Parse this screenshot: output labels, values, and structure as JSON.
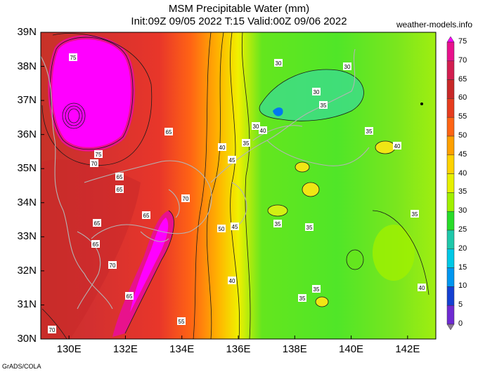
{
  "header": {
    "title": "MSM Precipitable Water (mm)",
    "subtitle": "Init:09Z 09/05 2022  T:15 Valid:00Z 09/06 2022",
    "site": "weather-models.info"
  },
  "footer": {
    "credit": "GrADS/COLA"
  },
  "map": {
    "lat_labels": [
      "39N",
      "38N",
      "37N",
      "36N",
      "35N",
      "34N",
      "33N",
      "32N",
      "31N",
      "30N"
    ],
    "lon_labels": [
      "130E",
      "132E",
      "134E",
      "136E",
      "138E",
      "140E",
      "142E"
    ],
    "lat_range": [
      30,
      39
    ],
    "lon_range": [
      129,
      143
    ],
    "contour_labels": [
      "75",
      "75",
      "70",
      "65",
      "65",
      "65",
      "70",
      "65",
      "65",
      "70",
      "65",
      "70",
      "65",
      "55",
      "40",
      "45",
      "50",
      "45",
      "40",
      "40",
      "35",
      "30",
      "30",
      "30",
      "30",
      "35",
      "35",
      "40",
      "35",
      "35",
      "35",
      "35",
      "35",
      "40"
    ]
  },
  "colorbar": {
    "labels": [
      "75",
      "70",
      "65",
      "60",
      "55",
      "50",
      "45",
      "40",
      "35",
      "30",
      "25",
      "20",
      "15",
      "10",
      "5",
      "0"
    ],
    "colors": [
      "#ff00ff",
      "#e8128c",
      "#d21e50",
      "#c82828",
      "#e63c1e",
      "#ff6414",
      "#ffa000",
      "#ffd200",
      "#e6f000",
      "#a0f000",
      "#28dc28",
      "#1ec8aa",
      "#00c8e6",
      "#0096f0",
      "#1440d2",
      "#6e2ad2",
      "#8c7894"
    ]
  }
}
